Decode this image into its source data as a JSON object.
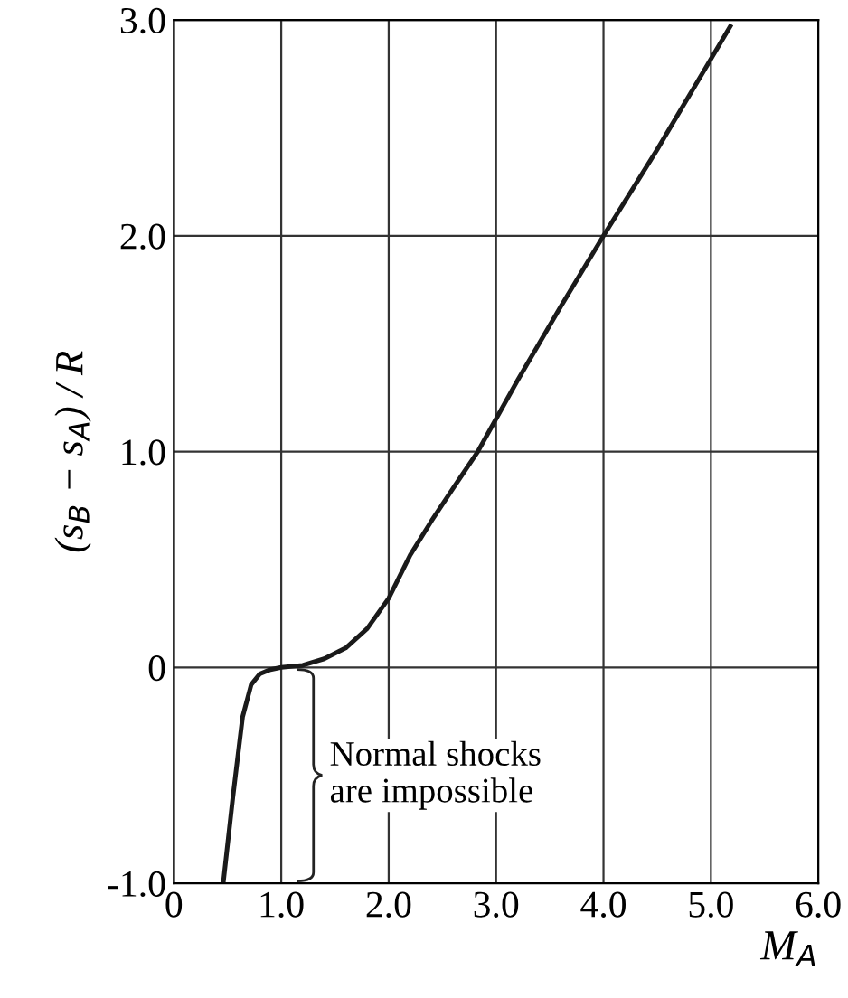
{
  "chart_data": {
    "type": "line",
    "xlabel": "M$_{A}$",
    "ylabel": "(s$_{B}$ − s$_{A}$) / R",
    "x": [
      0.46,
      0.55,
      0.64,
      0.72,
      0.8,
      0.9,
      1.0,
      1.2,
      1.4,
      1.6,
      1.8,
      2.0,
      2.2,
      2.4,
      2.6,
      2.83,
      3.2,
      3.6,
      4.0,
      4.5,
      5.18
    ],
    "series": [
      {
        "color": "#1a1a1a",
        "values": [
          -1.0,
          -0.6,
          -0.23,
          -0.08,
          -0.03,
          -0.01,
          0.0,
          0.01,
          0.04,
          0.09,
          0.18,
          0.32,
          0.52,
          0.68,
          0.83,
          1.0,
          1.33,
          1.67,
          2.0,
          2.4,
          2.97
        ]
      }
    ],
    "xlim": [
      0,
      6
    ],
    "ylim": [
      -1,
      3
    ],
    "xticks": [
      0,
      {
        "value": 1,
        "label": "1.0"
      },
      {
        "value": 2,
        "label": "2.0"
      },
      {
        "value": 3,
        "label": "3.0"
      },
      {
        "value": 4,
        "label": "4.0"
      },
      {
        "value": 5,
        "label": "5.0"
      },
      {
        "value": 6,
        "label": "6.0"
      }
    ],
    "yticks": [
      {
        "value": -1,
        "label": "-1.0"
      },
      0,
      {
        "value": 1,
        "label": "1.0"
      },
      {
        "value": 2,
        "label": "2.0"
      },
      {
        "value": 3,
        "label": "3.0"
      }
    ],
    "grid": true,
    "marker": "none",
    "line_style": "solid",
    "annotations": [
      "Normal shocks\nare impossible"
    ]
  }
}
